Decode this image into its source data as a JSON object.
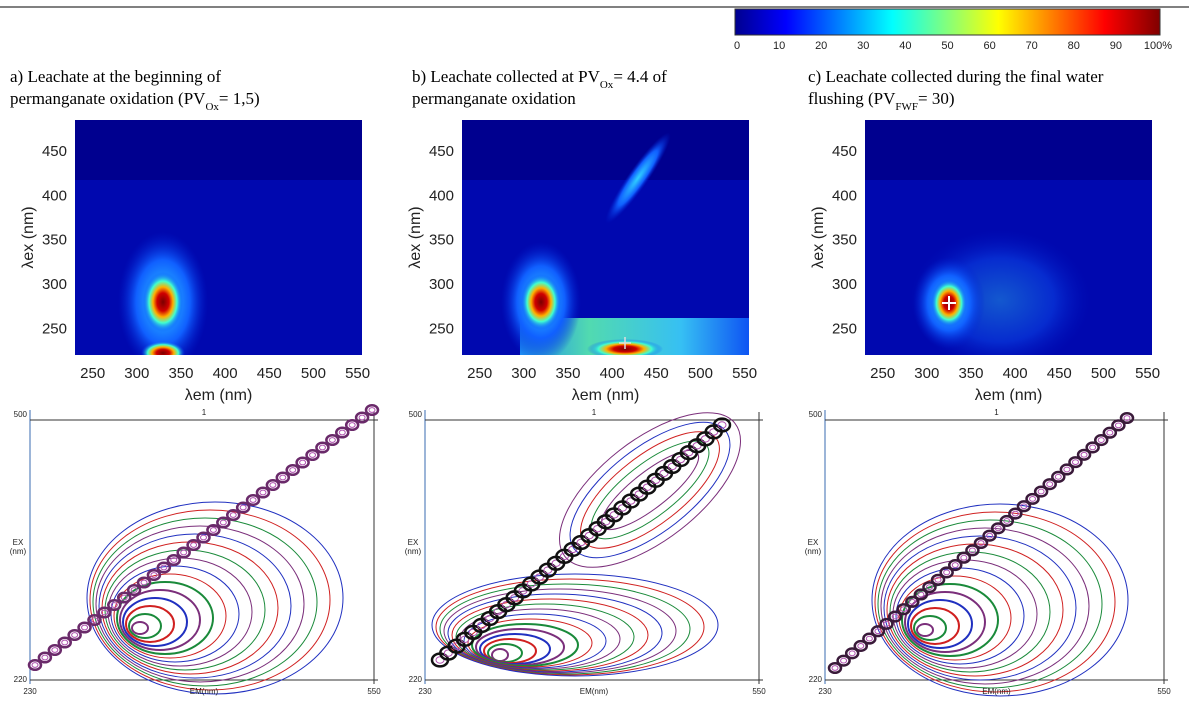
{
  "colorbar": {
    "ticks": [
      "0",
      "10",
      "20",
      "30",
      "40",
      "50",
      "60",
      "70",
      "80",
      "90",
      "100%"
    ]
  },
  "panels": [
    {
      "caption": [
        [
          {
            "t": "a) Leachate at the beginning of"
          }
        ],
        [
          {
            "t": "permanganate oxidation (PV"
          },
          {
            "sub": "Ox"
          },
          {
            "t": "= 1,5)"
          }
        ]
      ],
      "heatmap": {
        "xlabel": "λem (nm)",
        "ylabel": "λex (nm)",
        "xticks": [
          250,
          300,
          350,
          400,
          450,
          500,
          550
        ],
        "yticks": [
          250,
          300,
          350,
          400,
          450
        ],
        "xlim": [
          230,
          555
        ],
        "ylim": [
          220,
          485
        ]
      },
      "contour": {
        "xlabel": "EM(nm)",
        "ylabel": [
          "EX",
          "(nm)"
        ],
        "xticks": [
          "230",
          "550"
        ],
        "yticks": [
          "500",
          "220"
        ],
        "top_label": "1"
      }
    },
    {
      "caption": [
        [
          {
            "t": "b) Leachate collected at PV"
          },
          {
            "sub": "Ox"
          },
          {
            "t": "= 4.4 of"
          }
        ],
        [
          {
            "t": "permanganate oxidation"
          }
        ]
      ],
      "heatmap": {
        "xlabel": "λem (nm)",
        "ylabel": "λex (nm)",
        "xticks": [
          250,
          300,
          350,
          400,
          450,
          500,
          550
        ],
        "yticks": [
          250,
          300,
          350,
          400,
          450
        ],
        "xlim": [
          230,
          555
        ],
        "ylim": [
          220,
          485
        ]
      },
      "contour": {
        "xlabel": "EM(nm)",
        "ylabel": [
          "EX",
          "(nm)"
        ],
        "xticks": [
          "230",
          "550"
        ],
        "yticks": [
          "500",
          "220"
        ],
        "top_label": "1"
      }
    },
    {
      "caption": [
        [
          {
            "t": "c) Leachate collected during the final water"
          }
        ],
        [
          {
            "t": "flushing (PV"
          },
          {
            "sub": "FWF"
          },
          {
            "t": "= 30)"
          }
        ]
      ],
      "heatmap": {
        "xlabel": "λem (nm)",
        "ylabel": "λex (nm)",
        "xticks": [
          250,
          300,
          350,
          400,
          450,
          500,
          550
        ],
        "yticks": [
          250,
          300,
          350,
          400,
          450
        ],
        "xlim": [
          230,
          555
        ],
        "ylim": [
          220,
          485
        ]
      },
      "contour": {
        "xlabel": "EM(nm)",
        "ylabel": [
          "EX",
          "(nm)"
        ],
        "xticks": [
          "230",
          "550"
        ],
        "yticks": [
          "500",
          "220"
        ],
        "top_label": "1"
      }
    }
  ]
}
